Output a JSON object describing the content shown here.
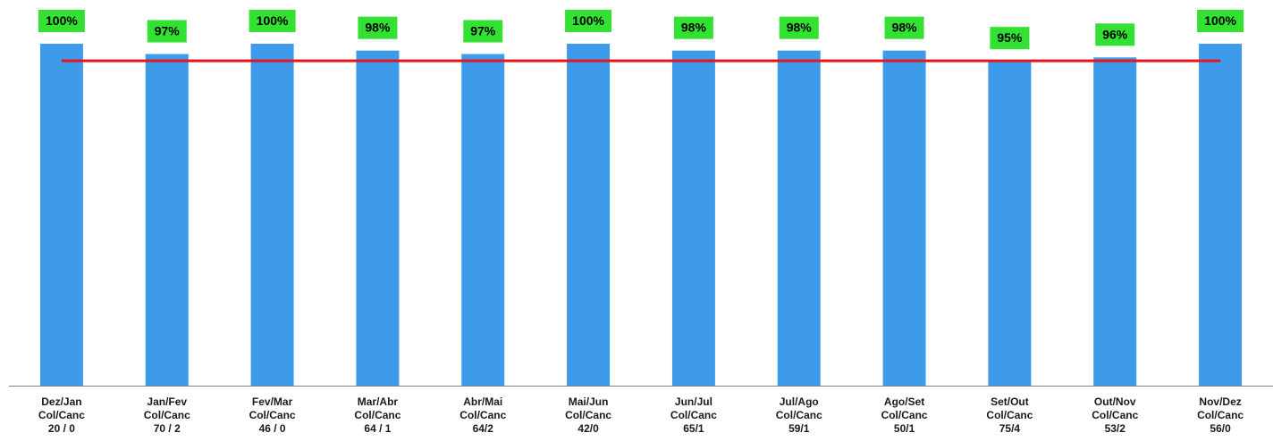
{
  "colors": {
    "bar": "#3d9be9",
    "target_line": "#e8141b",
    "label_background": "#33e133",
    "axis": "#7f7f7f"
  },
  "chart_data": {
    "type": "bar",
    "categories": [
      [
        "Dez/Jan",
        "Col/Canc",
        "20 / 0"
      ],
      [
        "Jan/Fev",
        "Col/Canc",
        "70 / 2"
      ],
      [
        "Fev/Mar",
        "Col/Canc",
        "46 / 0"
      ],
      [
        "Mar/Abr",
        "Col/Canc",
        "64 / 1"
      ],
      [
        "Abr/Mai",
        "Col/Canc",
        "64/2"
      ],
      [
        "Mai/Jun",
        "Col/Canc",
        "42/0"
      ],
      [
        "Jun/Jul",
        "Col/Canc",
        "65/1"
      ],
      [
        "Jul/Ago",
        "Col/Canc",
        "59/1"
      ],
      [
        "Ago/Set",
        "Col/Canc",
        "50/1"
      ],
      [
        "Set/Out",
        "Col/Canc",
        "75/4"
      ],
      [
        "Out/Nov",
        "Col/Canc",
        "53/2"
      ],
      [
        "Nov/Dez",
        "Col/Canc",
        "56/0"
      ]
    ],
    "values": [
      100,
      97,
      100,
      98,
      97,
      100,
      98,
      98,
      98,
      95,
      96,
      100
    ],
    "data_labels": [
      "100%",
      "97%",
      "100%",
      "98%",
      "97%",
      "100%",
      "98%",
      "98%",
      "98%",
      "95%",
      "96%",
      "100%"
    ],
    "target": 95,
    "ylim": [
      0,
      100
    ],
    "grid": false,
    "legend": "none",
    "title": "",
    "xlabel": "",
    "ylabel": ""
  }
}
